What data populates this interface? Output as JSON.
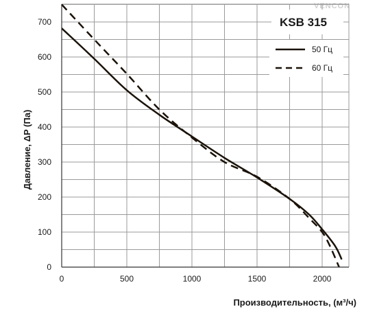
{
  "chart_data": {
    "type": "line",
    "title": "KSB 315",
    "xlabel": "Производительность, (м³/ч)",
    "ylabel": "Давление, ΔP (Па)",
    "xlim": [
      0,
      2200
    ],
    "ylim": [
      0,
      750
    ],
    "xticks": [
      0,
      500,
      1000,
      1500,
      2000
    ],
    "yticks": [
      0,
      100,
      200,
      300,
      400,
      500,
      600,
      700
    ],
    "grid": true,
    "legend_position": "top-right",
    "series": [
      {
        "name": "50 Гц",
        "style": "solid",
        "color": "#1a1208",
        "x": [
          0,
          250,
          500,
          750,
          1000,
          1250,
          1500,
          1750,
          1900,
          2000,
          2100,
          2150
        ],
        "y": [
          682,
          595,
          505,
          435,
          373,
          312,
          256,
          195,
          150,
          108,
          60,
          22
        ]
      },
      {
        "name": "60 Гц",
        "style": "dashed",
        "color": "#1a1208",
        "x": [
          0,
          250,
          500,
          750,
          1000,
          1250,
          1500,
          1750,
          1900,
          2000,
          2060,
          2130
        ],
        "y": [
          750,
          650,
          552,
          450,
          370,
          300,
          258,
          195,
          140,
          100,
          60,
          0
        ]
      }
    ]
  },
  "watermark": "VENCON"
}
